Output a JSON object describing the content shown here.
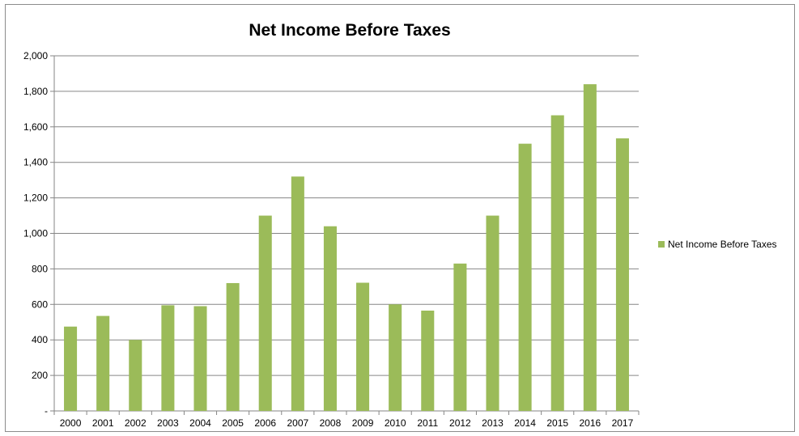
{
  "chart_data": {
    "type": "bar",
    "title": "Net Income Before Taxes",
    "categories": [
      "2000",
      "2001",
      "2002",
      "2003",
      "2004",
      "2005",
      "2006",
      "2007",
      "2008",
      "2009",
      "2010",
      "2011",
      "2012",
      "2013",
      "2014",
      "2015",
      "2016",
      "2017"
    ],
    "series": [
      {
        "name": "Net Income Before Taxes",
        "values": [
          475,
          535,
          400,
          595,
          590,
          720,
          1100,
          1320,
          1040,
          722,
          600,
          565,
          830,
          1100,
          1505,
          1665,
          1840,
          1535
        ]
      }
    ],
    "ylim": [
      0,
      2000
    ],
    "yticks": [
      0,
      200,
      400,
      600,
      800,
      1000,
      1200,
      1400,
      1600,
      1800,
      2000
    ],
    "ytick_labels": [
      "-",
      "200",
      "400",
      "600",
      "800",
      "1,000",
      "1,200",
      "1,400",
      "1,600",
      "1,800",
      "2,000"
    ],
    "grid": true,
    "legend_position": "right",
    "bar_color": "#9bbb59",
    "grid_color": "#868686"
  }
}
